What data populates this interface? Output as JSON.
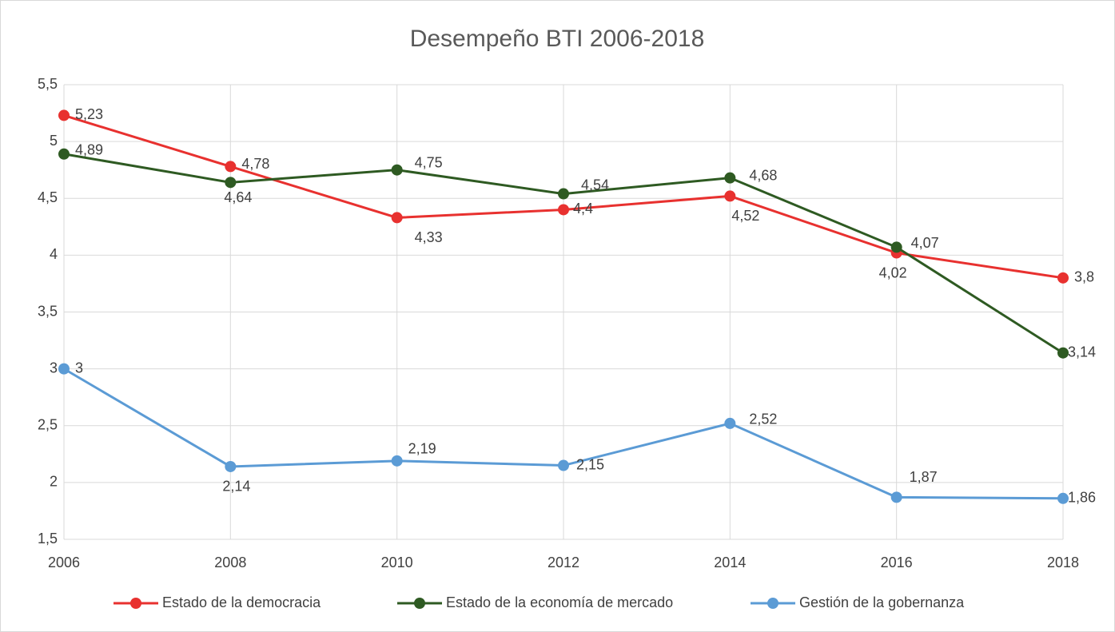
{
  "chart_data": {
    "type": "line",
    "title": "Desempeño BTI 2006-2018",
    "x": [
      2006,
      2008,
      2010,
      2012,
      2014,
      2016,
      2018
    ],
    "xlim": [
      2006,
      2018
    ],
    "xticks": [
      2006,
      2008,
      2010,
      2012,
      2014,
      2016,
      2018
    ],
    "ylim": [
      1.5,
      5.5
    ],
    "yticks": [
      {
        "value": 1.5,
        "label": "1,5"
      },
      2,
      {
        "value": 2.5,
        "label": "2,5"
      },
      3,
      {
        "value": 3.5,
        "label": "3,5"
      },
      4,
      {
        "value": 4.5,
        "label": "4,5"
      },
      5,
      {
        "value": 5.5,
        "label": "5,5"
      }
    ],
    "grid": true,
    "legend": "bottom",
    "series": [
      {
        "name": "Estado de la democracia",
        "color": "#e8312f",
        "values": [
          5.23,
          4.78,
          4.33,
          4.4,
          4.52,
          4.02,
          3.8
        ],
        "value_labels": [
          "5,23",
          "4,78",
          "4,33",
          "4,4",
          "4,52",
          "4,02",
          "3,8"
        ]
      },
      {
        "name": "Estado de la economía de mercado",
        "color": "#2e5a22",
        "values": [
          4.89,
          4.64,
          4.75,
          4.54,
          4.68,
          4.07,
          3.14
        ],
        "value_labels": [
          "4,89",
          "4,64",
          "4,75",
          "4,54",
          "4,68",
          "4,07",
          "3,14"
        ]
      },
      {
        "name": "Gestión de la gobernanza",
        "color": "#5b9bd5",
        "values": [
          3,
          2.14,
          2.19,
          2.15,
          2.52,
          1.87,
          1.86
        ],
        "value_labels": [
          "3",
          "2,14",
          "2,19",
          "2,15",
          "2,52",
          "1,87",
          "1,86"
        ]
      }
    ]
  }
}
